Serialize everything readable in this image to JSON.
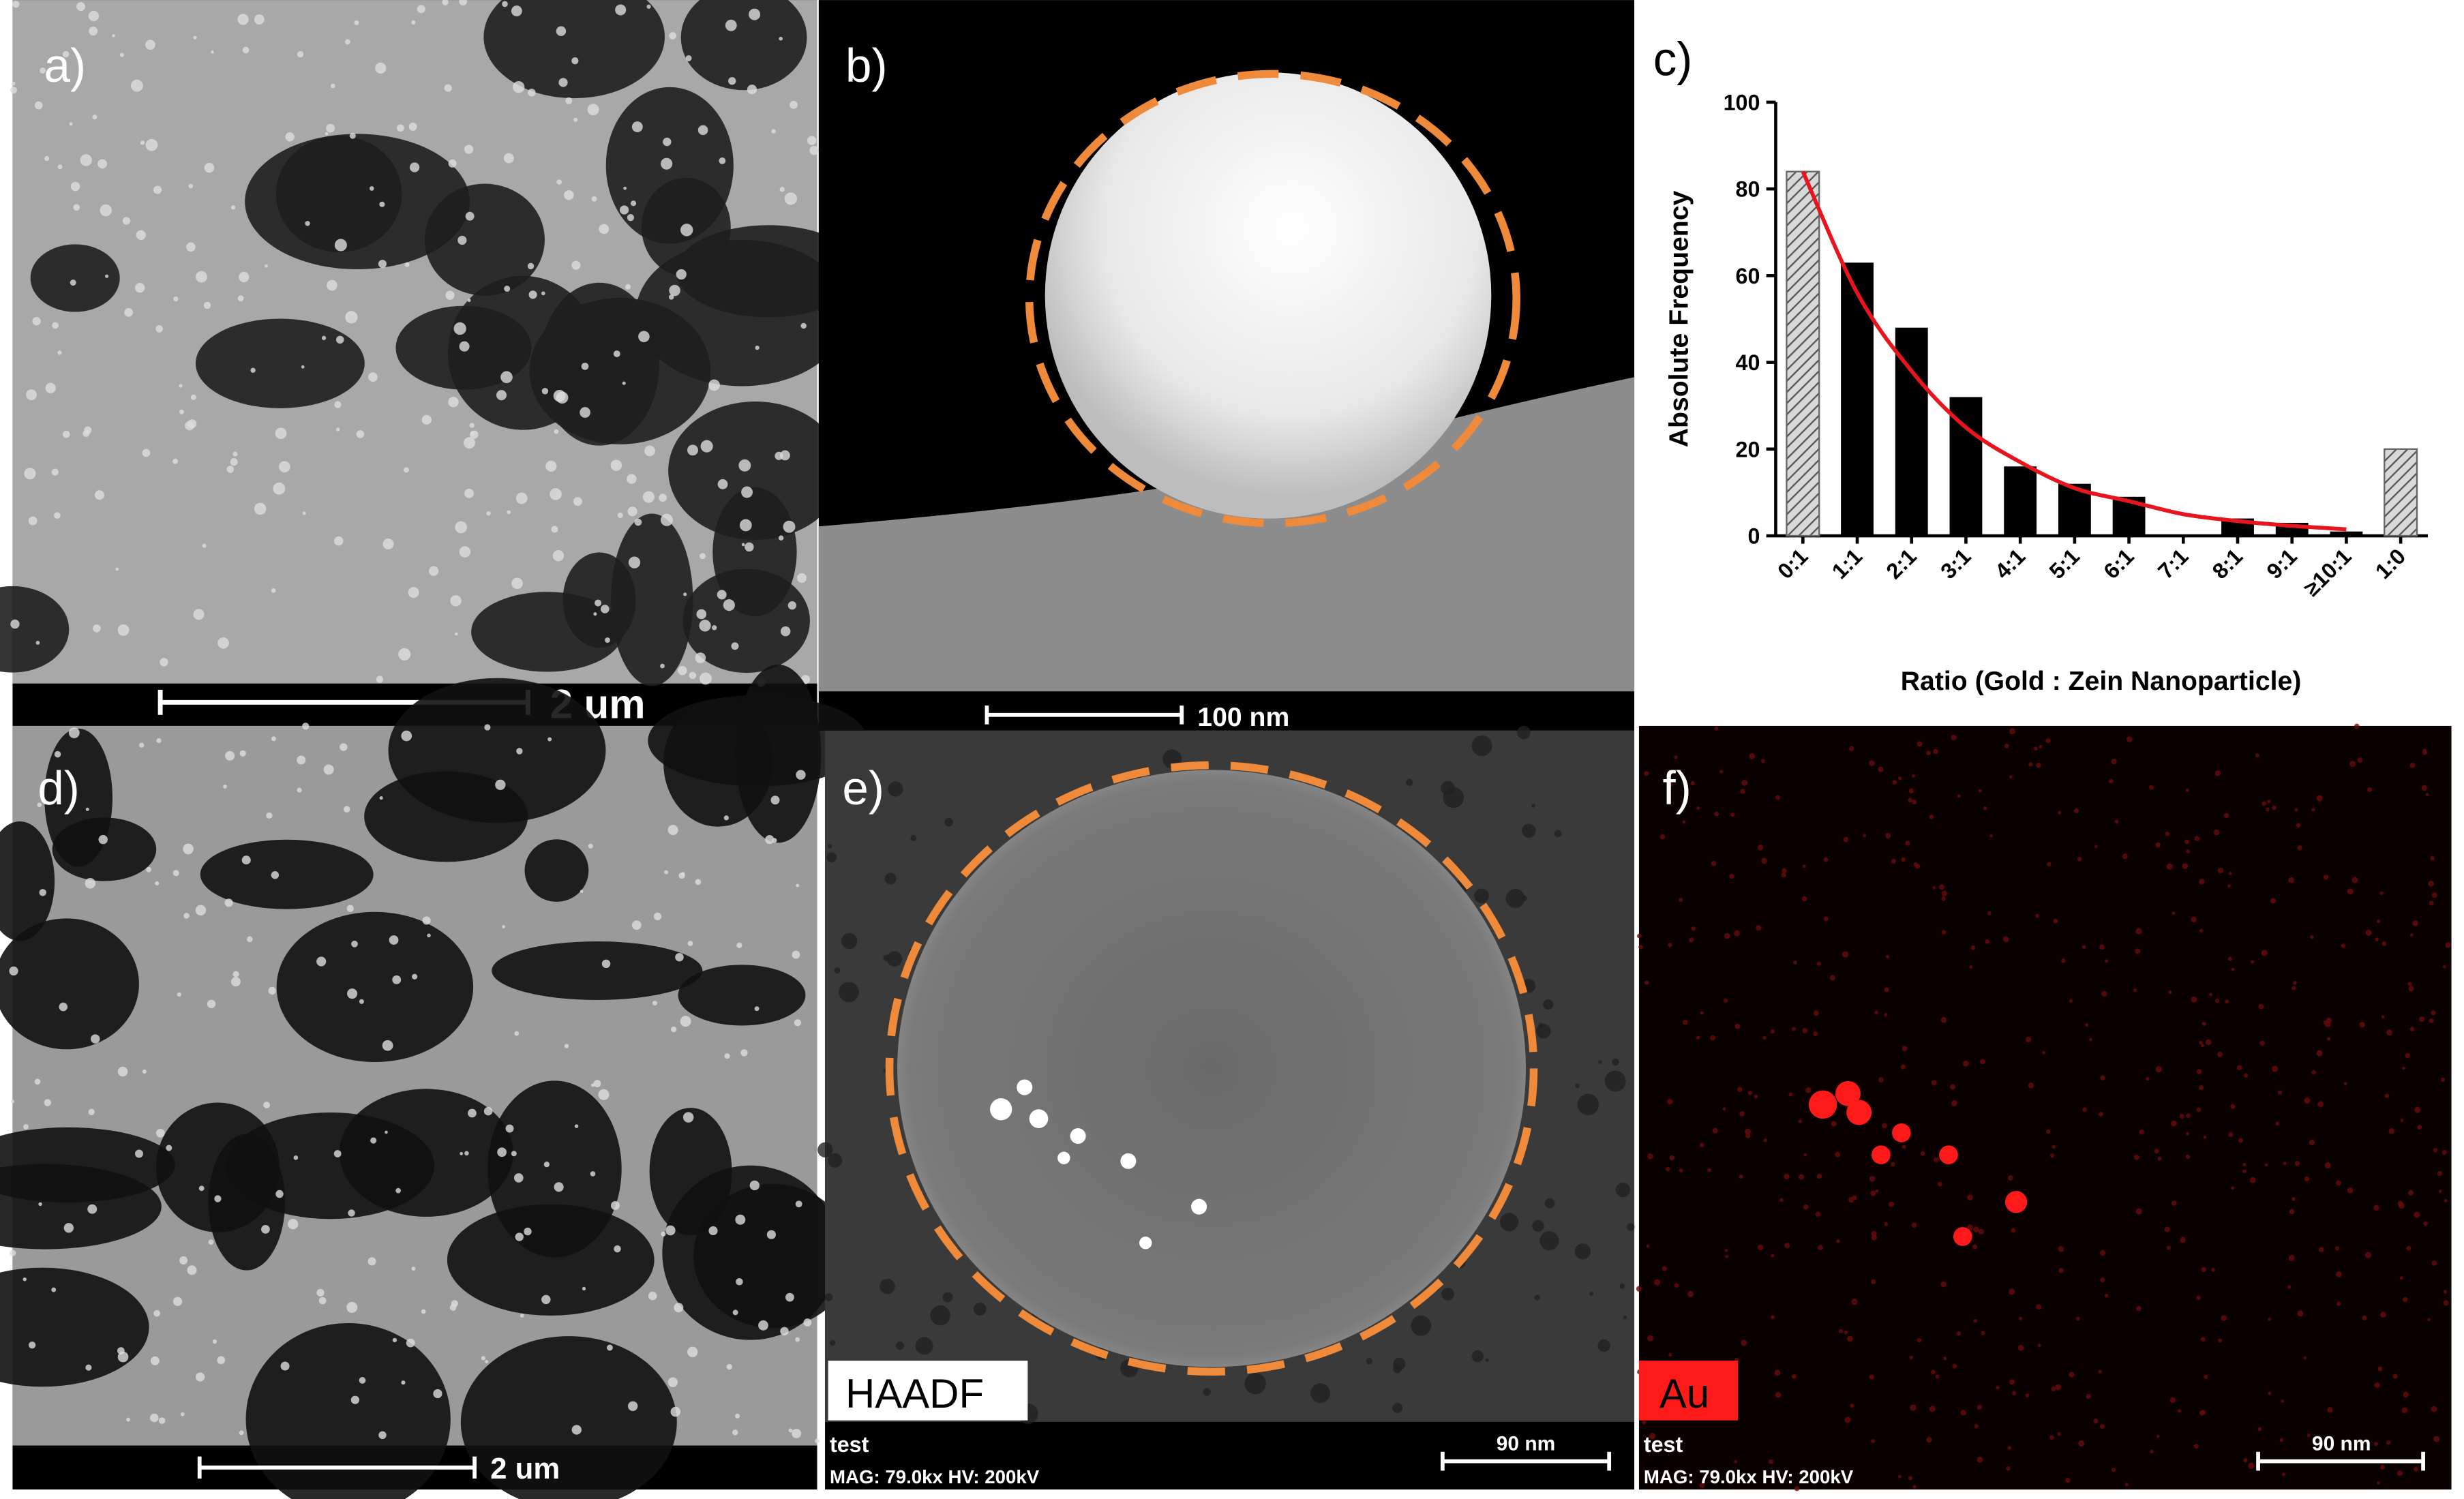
{
  "panels": [
    {
      "label": "a)",
      "scale_bar": "2 um"
    },
    {
      "label": "b)",
      "scale_bar": "100 nm"
    },
    {
      "label": "c)"
    },
    {
      "label": "d)",
      "scale_bar": "2 um"
    },
    {
      "label": "e)",
      "signal": "HAADF",
      "sample": "test",
      "info": "MAG: 79.0kx HV: 200kV",
      "scale_bar": "90 nm"
    },
    {
      "label": "f)",
      "signal": "Au",
      "sample": "test",
      "info": "MAG: 79.0kx HV: 200kV",
      "scale_bar": "90 nm"
    }
  ],
  "chart_data": {
    "type": "bar",
    "x_label": "Ratio (Gold : Zein Nanoparticle)",
    "y_label": "Absolute Frequency",
    "categories": [
      "0:1",
      "1:1",
      "2:1",
      "3:1",
      "4:1",
      "5:1",
      "6:1",
      "7:1",
      "8:1",
      "9:1",
      "≥10:1",
      "1:0"
    ],
    "values": [
      84,
      63,
      48,
      32,
      16,
      12,
      9,
      0,
      4,
      3,
      1,
      20
    ],
    "hatched": [
      true,
      false,
      false,
      false,
      false,
      false,
      false,
      false,
      false,
      false,
      false,
      true
    ],
    "color": "#000000",
    "fit": {
      "color": "#e8141e",
      "values": [
        84,
        56,
        38,
        25,
        17,
        11,
        8,
        5,
        3.4,
        2.3,
        1.5
      ]
    },
    "ylim": [
      0,
      100
    ],
    "yticks": [
      0,
      20,
      40,
      60,
      80,
      100
    ]
  }
}
